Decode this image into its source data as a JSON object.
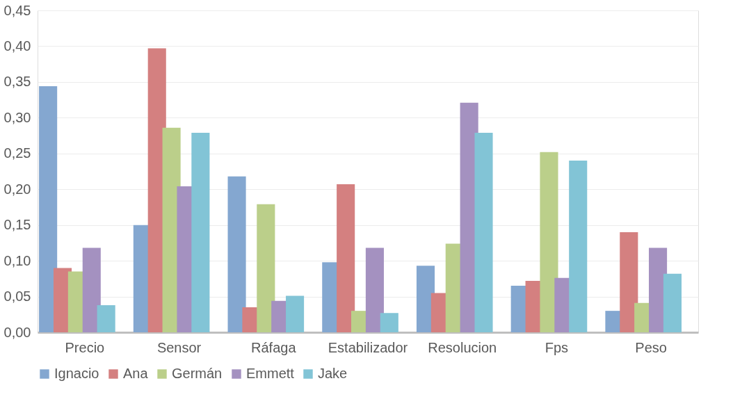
{
  "chart_data": {
    "type": "bar",
    "categories": [
      "Precio",
      "Sensor",
      "Ráfaga",
      "Estabilizador",
      "Resolucion",
      "Fps",
      "Peso"
    ],
    "series": [
      {
        "name": "Ignacio",
        "color": "#84a7d0",
        "values": [
          0.344,
          0.15,
          0.218,
          0.098,
          0.093,
          0.065,
          0.03
        ]
      },
      {
        "name": "Ana",
        "color": "#d48080",
        "values": [
          0.09,
          0.397,
          0.035,
          0.207,
          0.055,
          0.072,
          0.14
        ]
      },
      {
        "name": "Germán",
        "color": "#bbcf8a",
        "values": [
          0.085,
          0.286,
          0.179,
          0.03,
          0.124,
          0.252,
          0.041
        ]
      },
      {
        "name": "Emmett",
        "color": "#a491c0",
        "values": [
          0.118,
          0.204,
          0.044,
          0.118,
          0.321,
          0.076,
          0.118
        ]
      },
      {
        "name": "Jake",
        "color": "#82c4d6",
        "values": [
          0.038,
          0.279,
          0.051,
          0.027,
          0.279,
          0.24,
          0.082
        ]
      }
    ],
    "ylim": [
      0,
      0.45
    ],
    "yticks": [
      {
        "value": 0,
        "label": "0,00"
      },
      {
        "value": 0.05,
        "label": "0,05"
      },
      {
        "value": 0.1,
        "label": "0,10"
      },
      {
        "value": 0.15,
        "label": "0,15"
      },
      {
        "value": 0.2,
        "label": "0,20"
      },
      {
        "value": 0.25,
        "label": "0,25"
      },
      {
        "value": 0.3,
        "label": "0,30"
      },
      {
        "value": 0.35,
        "label": "0,35"
      },
      {
        "value": 0.4,
        "label": "0,40"
      },
      {
        "value": 0.45,
        "label": "0,45"
      }
    ],
    "grid": "y",
    "legend": "bottom"
  }
}
